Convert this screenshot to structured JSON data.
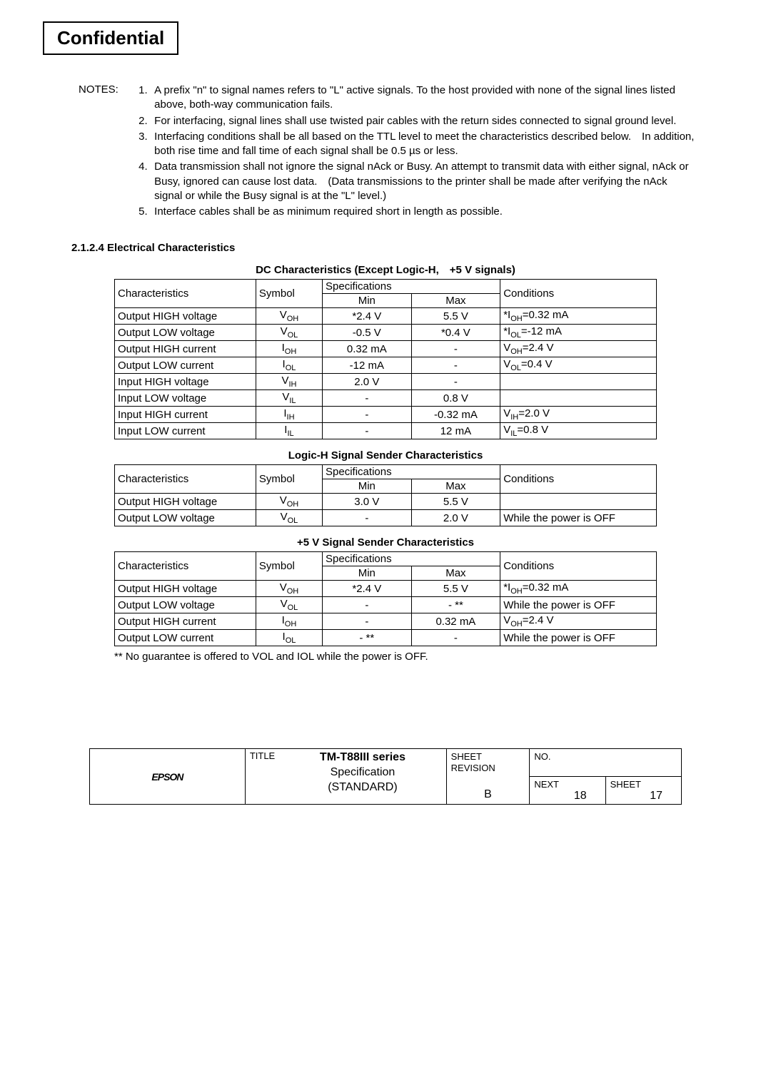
{
  "confidential": "Confidential",
  "notes": {
    "label": "NOTES:",
    "items": [
      {
        "n": "1.",
        "t": "A prefix \"n\" to signal names refers to \"L\" active signals. To the host provided with none of the signal lines listed above, both-way communication fails."
      },
      {
        "n": "2.",
        "t": "For interfacing, signal lines shall use twisted pair cables with the return sides connected to signal ground level."
      },
      {
        "n": "3.",
        "t": "Interfacing conditions shall be all based on the TTL level to meet the characteristics described below. In addition, both rise time and fall time of each signal shall be 0.5 µs or less."
      },
      {
        "n": "4.",
        "t": "Data transmission shall not ignore the signal nAck or Busy. An attempt to transmit data with either signal, nAck or Busy, ignored can cause lost data. (Data transmissions to the printer shall be made after verifying the nAck signal or while the Busy signal is at the \"L\" level.)"
      },
      {
        "n": "5.",
        "t": "Interface cables shall be as minimum required short in length as possible."
      }
    ]
  },
  "section_heading": "2.1.2.4 Electrical Characteristics",
  "headers": {
    "char": "Characteristics",
    "sym": "Symbol",
    "spec": "Specifications",
    "min": "Min",
    "max": "Max",
    "cond": "Conditions"
  },
  "table1": {
    "title": "DC Characteristics (Except Logic-H, +5 V signals)",
    "rows": [
      {
        "c": "Output HIGH voltage",
        "s": "V",
        "ss": "OH",
        "min": "*2.4 V",
        "max": "5.5 V",
        "cond": "*IOH=0.32 mA"
      },
      {
        "c": "Output LOW voltage",
        "s": "V",
        "ss": "OL",
        "min": "-0.5 V",
        "max": "*0.4 V",
        "cond": "*IOL=-12 mA"
      },
      {
        "c": "Output HIGH current",
        "s": "I",
        "ss": "OH",
        "min": "0.32 mA",
        "max": "-",
        "cond": "VOH=2.4 V"
      },
      {
        "c": "Output LOW current",
        "s": "I",
        "ss": "OL",
        "min": "-12 mA",
        "max": "-",
        "cond": "VOL=0.4 V"
      },
      {
        "c": "Input HIGH voltage",
        "s": "V",
        "ss": "IH",
        "min": "2.0 V",
        "max": "-",
        "cond": ""
      },
      {
        "c": "Input LOW voltage",
        "s": "V",
        "ss": "IL",
        "min": "-",
        "max": "0.8 V",
        "cond": ""
      },
      {
        "c": "Input HIGH current",
        "s": "I",
        "ss": "IH",
        "min": "-",
        "max": "-0.32 mA",
        "cond": "VIH=2.0 V"
      },
      {
        "c": "Input LOW current",
        "s": "I",
        "ss": "IL",
        "min": "-",
        "max": "12 mA",
        "cond": "VIL=0.8 V"
      }
    ]
  },
  "table2": {
    "title": "Logic-H Signal Sender Characteristics",
    "rows": [
      {
        "c": "Output HIGH voltage",
        "s": "V",
        "ss": "OH",
        "min": "3.0 V",
        "max": "5.5 V",
        "cond": ""
      },
      {
        "c": "Output LOW voltage",
        "s": "V",
        "ss": "OL",
        "min": "-",
        "max": "2.0 V",
        "cond": "While the power is OFF"
      }
    ]
  },
  "table3": {
    "title": "+5 V Signal Sender Characteristics",
    "rows": [
      {
        "c": "Output HIGH voltage",
        "s": "V",
        "ss": "OH",
        "min": "*2.4 V",
        "max": "5.5 V",
        "cond": "*IOH=0.32 mA"
      },
      {
        "c": "Output LOW voltage",
        "s": "V",
        "ss": "OL",
        "min": "-",
        "max": "- **",
        "cond": "While the power is OFF"
      },
      {
        "c": "Output HIGH current",
        "s": "I",
        "ss": "OH",
        "min": "-",
        "max": "0.32 mA",
        "cond": "VOH=2.4 V"
      },
      {
        "c": "Output LOW current",
        "s": "I",
        "ss": "OL",
        "min": "- **",
        "max": "-",
        "cond": "While the power is OFF"
      }
    ]
  },
  "footnote": "** No guarantee is offered to VOL and IOL while the power is OFF.",
  "titleblock": {
    "brand": "EPSON",
    "title_label": "TITLE",
    "title_line1": "TM-T88III  series",
    "title_line2": "Specification",
    "title_line3": "(STANDARD)",
    "sheet_rev_label": "SHEET\nREVISION",
    "no_label": "NO.",
    "rev": "B",
    "next_label": "NEXT",
    "next": "18",
    "sheet_label": "SHEET",
    "sheet": "17"
  }
}
